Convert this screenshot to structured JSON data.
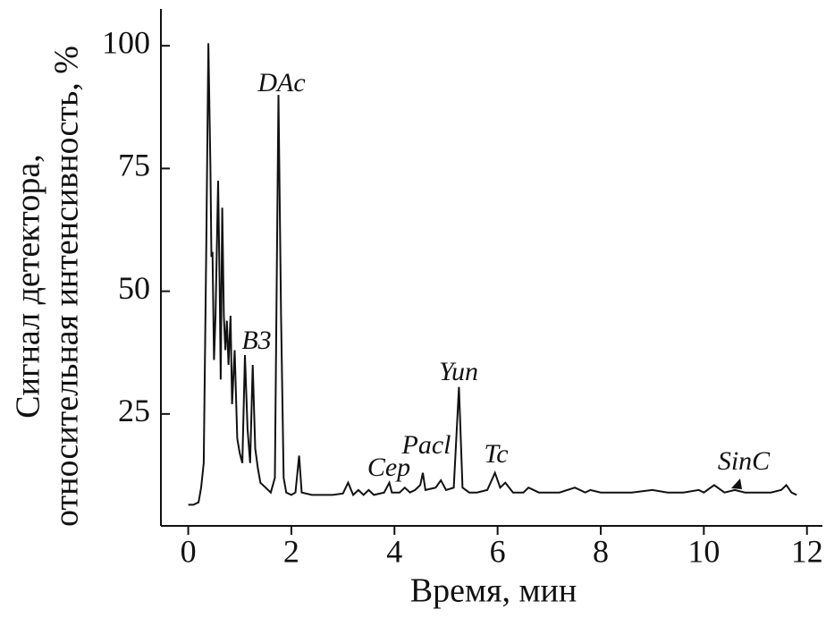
{
  "chart_data": {
    "type": "line",
    "x_label": "Время, мин",
    "y_label": [
      "Сигнал детектора,",
      "относительная интенсивность, %"
    ],
    "annotations": [
      "DAc",
      "B3",
      "Cep",
      "Pacl",
      "Yun",
      "Tc",
      "SinC"
    ],
    "xlim": [
      -0.53,
      12.3
    ],
    "ylim": [
      2.2,
      107.5
    ],
    "xticks": [
      0,
      2,
      4,
      6,
      8,
      10,
      12
    ],
    "yticks": [
      25,
      50,
      75,
      100
    ],
    "grid": false,
    "series": [
      {
        "color": "#111111",
        "x": [
          0.0,
          0.1,
          0.2,
          0.25,
          0.3,
          0.35,
          0.39,
          0.43,
          0.45,
          0.47,
          0.5,
          0.53,
          0.58,
          0.61,
          0.63,
          0.66,
          0.69,
          0.72,
          0.75,
          0.78,
          0.82,
          0.85,
          0.9,
          0.95,
          1.0,
          1.05,
          1.1,
          1.15,
          1.2,
          1.25,
          1.3,
          1.35,
          1.4,
          1.5,
          1.6,
          1.68,
          1.75,
          1.8,
          1.85,
          1.9,
          2.0,
          2.08,
          2.15,
          2.2,
          2.4,
          2.6,
          2.8,
          3.0,
          3.1,
          3.2,
          3.3,
          3.4,
          3.5,
          3.6,
          3.8,
          3.9,
          3.95,
          4.1,
          4.2,
          4.3,
          4.4,
          4.5,
          4.55,
          4.6,
          4.8,
          4.9,
          5.0,
          5.15,
          5.25,
          5.32,
          5.45,
          5.6,
          5.8,
          5.95,
          6.05,
          6.15,
          6.3,
          6.5,
          6.6,
          6.8,
          7.0,
          7.2,
          7.5,
          7.7,
          7.8,
          8.0,
          8.3,
          8.6,
          9.0,
          9.3,
          9.6,
          9.9,
          10.0,
          10.2,
          10.4,
          10.6,
          10.8,
          11.0,
          11.3,
          11.5,
          11.6,
          11.7,
          11.8
        ],
        "values": [
          6.5,
          6.5,
          7,
          10,
          15,
          60,
          100.5,
          75,
          57,
          58,
          36,
          45,
          72.5,
          50,
          32,
          67,
          45,
          38,
          44,
          35,
          45,
          27,
          38,
          20,
          17,
          15,
          37,
          22,
          15,
          35,
          18,
          14,
          11,
          10,
          9,
          12,
          90,
          45,
          12,
          9,
          8.5,
          9,
          16.5,
          9,
          8.5,
          8.5,
          8.5,
          8.8,
          11,
          8.5,
          9.5,
          8.5,
          9.5,
          8.5,
          9,
          11,
          9,
          9,
          10,
          9,
          9.5,
          10.5,
          13,
          9.5,
          10,
          11.5,
          9.5,
          10,
          30.5,
          10,
          9,
          9,
          9.5,
          13,
          10,
          11,
          9,
          9,
          10,
          9,
          9,
          9,
          10,
          9,
          9.5,
          9,
          9,
          9,
          9.5,
          9,
          9,
          9.5,
          9,
          10.5,
          9,
          9.5,
          9,
          9,
          9,
          9.5,
          10.5,
          9,
          8.5
        ]
      }
    ]
  }
}
